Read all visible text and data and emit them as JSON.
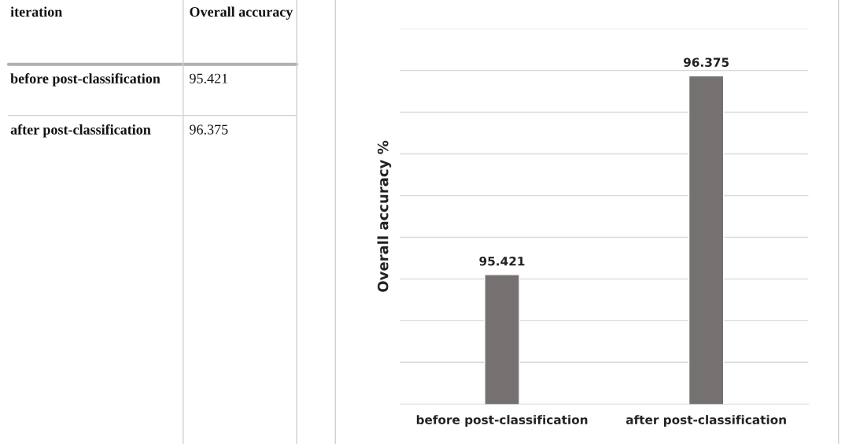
{
  "chart_data": {
    "type": "bar",
    "ylabel": "Overall accuracy %",
    "categories": [
      "before post-classification",
      "after post-classification"
    ],
    "values": [
      95.421,
      96.375
    ],
    "color": "#767171",
    "ylim": [
      94.8,
      96.6
    ],
    "yticks": [
      {
        "value": 95.0,
        "label": null
      },
      {
        "value": 95.2,
        "label": null
      },
      {
        "value": 95.4,
        "label": null
      },
      {
        "value": 95.6,
        "label": null
      },
      {
        "value": 95.8,
        "label": null
      },
      {
        "value": 96.0,
        "label": null
      },
      {
        "value": 96.2,
        "label": null
      },
      {
        "value": 96.4,
        "label": null
      },
      {
        "value": 96.6,
        "label": null
      }
    ],
    "tick_labels": "x",
    "grid": "y",
    "value_labels": [
      "95.421",
      "96.375"
    ],
    "annotations": [
      "iteration",
      "Overall accuracy"
    ]
  }
}
